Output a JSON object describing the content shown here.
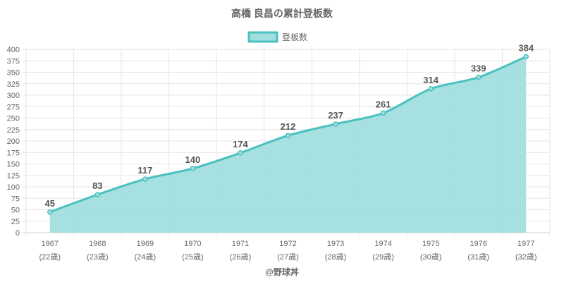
{
  "chart_data": {
    "type": "area",
    "title": "高橋 良昌の累計登板数",
    "legend": {
      "label": "登板数",
      "position": "top-center"
    },
    "footer": "@野球丼",
    "categories": [
      "1967",
      "1968",
      "1969",
      "1970",
      "1971",
      "1972",
      "1973",
      "1974",
      "1975",
      "1976",
      "1977"
    ],
    "sublabels": [
      "(22歳)",
      "(23歳)",
      "(24歳)",
      "(25歳)",
      "(26歳)",
      "(27歳)",
      "(28歳)",
      "(29歳)",
      "(30歳)",
      "(31歳)",
      "(32歳)"
    ],
    "series": [
      {
        "name": "登板数",
        "values": [
          45,
          83,
          117,
          140,
          174,
          212,
          237,
          261,
          314,
          339,
          384
        ],
        "labels": [
          "45",
          "83",
          "117",
          "140",
          "174",
          "212",
          "237",
          "261",
          "314",
          "339",
          "384"
        ]
      }
    ],
    "ylim": [
      0,
      400
    ],
    "yticks": [
      "0",
      "25",
      "50",
      "75",
      "100",
      "125",
      "150",
      "175",
      "200",
      "225",
      "250",
      "275",
      "300",
      "325",
      "350",
      "375",
      "400"
    ],
    "grid": true,
    "colors": {
      "line": "#4bc0c0",
      "fill": "#a1dede",
      "grid": "#e6e6e6",
      "axis": "#cfcfcf",
      "title_text": "#666666",
      "tick_text": "#666666",
      "data_label_text": "#555555"
    }
  }
}
